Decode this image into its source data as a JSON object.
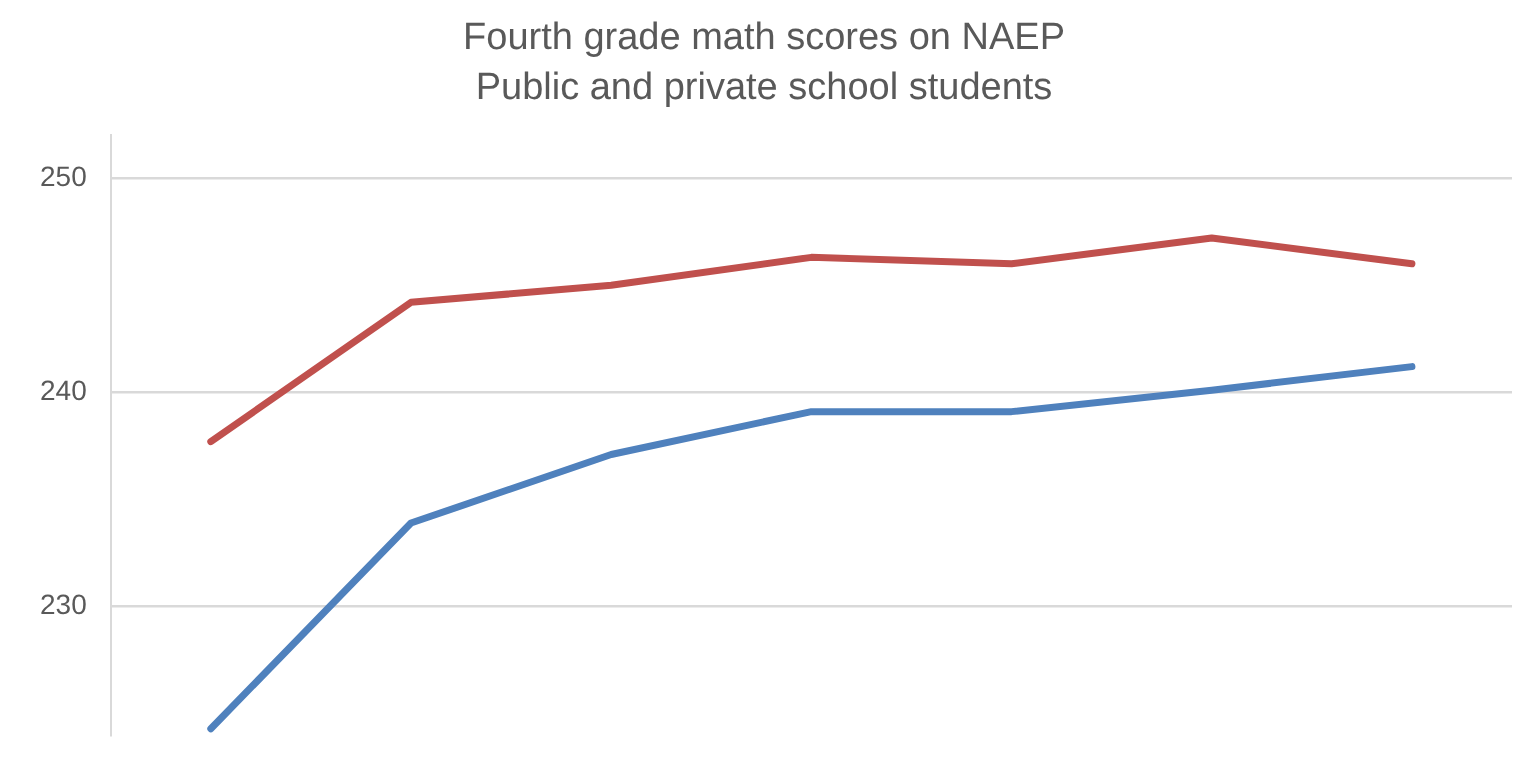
{
  "chart_data": {
    "type": "line",
    "title": "Fourth grade math scores on NAEP",
    "subtitle": "Public and private school students",
    "categories": [
      null,
      null,
      null,
      null,
      null,
      null,
      null
    ],
    "series": [
      {
        "color": "#c0504d",
        "values": [
          237.7,
          244.2,
          245,
          246.3,
          246,
          247.2,
          246
        ]
      },
      {
        "color": "#4f81bd",
        "values": [
          224.3,
          233.9,
          237.1,
          239.1,
          239.1,
          240.1,
          241.2
        ]
      }
    ],
    "ylim": [
      224,
      252
    ],
    "yticks": [
      230,
      240,
      250
    ],
    "grid": "y",
    "tick_labels": "y",
    "legend": false,
    "marker": "none",
    "line_style": "solid"
  }
}
